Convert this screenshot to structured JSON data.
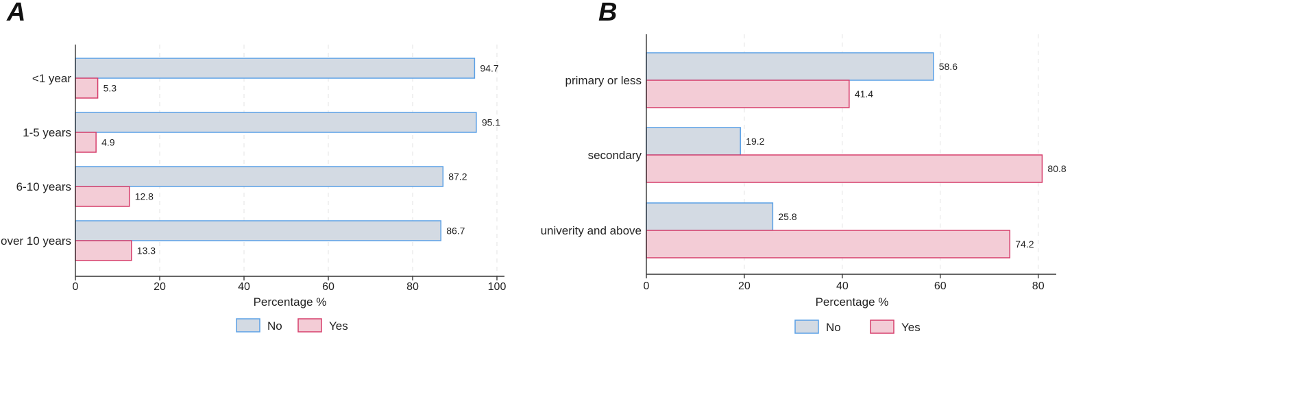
{
  "colors": {
    "no_fill": "#d3dae3",
    "no_stroke": "#5aa0e6",
    "yes_fill": "#f3ccd6",
    "yes_stroke": "#d63e6c"
  },
  "chart_data": [
    {
      "panel": "A",
      "type": "bar",
      "orientation": "horizontal",
      "categories": [
        "<1 year",
        "1-5 years",
        "6-10 years",
        "over 10 years"
      ],
      "series": [
        {
          "name": "No",
          "values": [
            94.7,
            95.1,
            87.2,
            86.7
          ],
          "labels": [
            "94.7",
            "95.1",
            "87.2",
            "86.7"
          ]
        },
        {
          "name": "Yes",
          "values": [
            5.3,
            4.9,
            12.8,
            13.3
          ],
          "labels": [
            "5.3",
            "4.9",
            "12.8",
            "13.3"
          ]
        }
      ],
      "xlabel": "Percentage %",
      "xlim": [
        0,
        100
      ],
      "xticks": [
        0,
        20,
        40,
        60,
        80,
        100
      ],
      "xtick_labels": [
        "0",
        "20",
        "40",
        "60",
        "80",
        "100"
      ],
      "grid": true,
      "legend": [
        "No",
        "Yes"
      ],
      "legend_position": "bottom"
    },
    {
      "panel": "B",
      "type": "bar",
      "orientation": "horizontal",
      "categories": [
        "primary or less",
        "secondary",
        "univerity and above"
      ],
      "series": [
        {
          "name": "No",
          "values": [
            58.6,
            19.2,
            25.8
          ],
          "labels": [
            "58.6",
            "19.2",
            "25.8"
          ]
        },
        {
          "name": "Yes",
          "values": [
            41.4,
            80.8,
            74.2
          ],
          "labels": [
            "41.4",
            "80.8",
            "74.2"
          ]
        }
      ],
      "xlabel": "Percentage %",
      "xlim": [
        0,
        82
      ],
      "xticks": [
        0,
        20,
        40,
        60,
        80
      ],
      "xtick_labels": [
        "0",
        "20",
        "40",
        "60",
        "80"
      ],
      "grid": true,
      "legend": [
        "No",
        "Yes"
      ],
      "legend_position": "bottom"
    }
  ]
}
